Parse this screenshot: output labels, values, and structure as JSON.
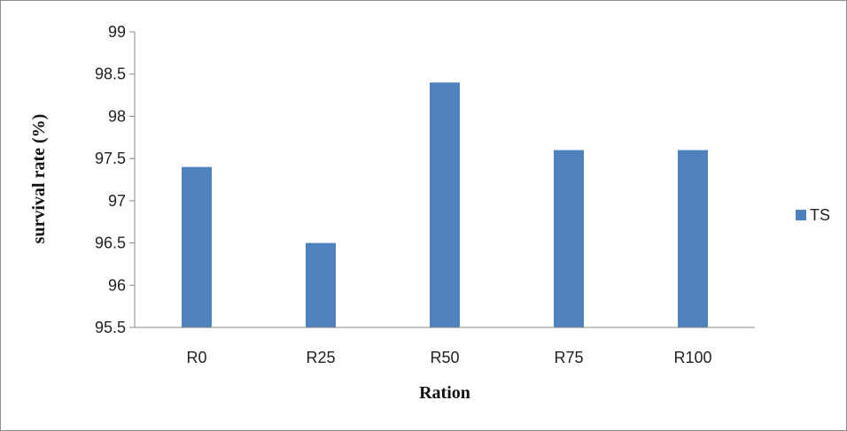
{
  "chart_data": {
    "type": "bar",
    "categories": [
      "R0",
      "R25",
      "R50",
      "R75",
      "R100"
    ],
    "series": [
      {
        "name": "TS",
        "values": [
          97.4,
          96.5,
          98.4,
          97.6,
          97.6
        ],
        "color": "#4F81BD"
      }
    ],
    "xlabel": "Ration",
    "ylabel": "survival rate (%)",
    "ylim": [
      95.5,
      99
    ],
    "yticks": [
      "95.5",
      "96",
      "96.5",
      "97",
      "97.5",
      "98",
      "98.5",
      "99"
    ],
    "grid": false,
    "legend_position": "right"
  }
}
